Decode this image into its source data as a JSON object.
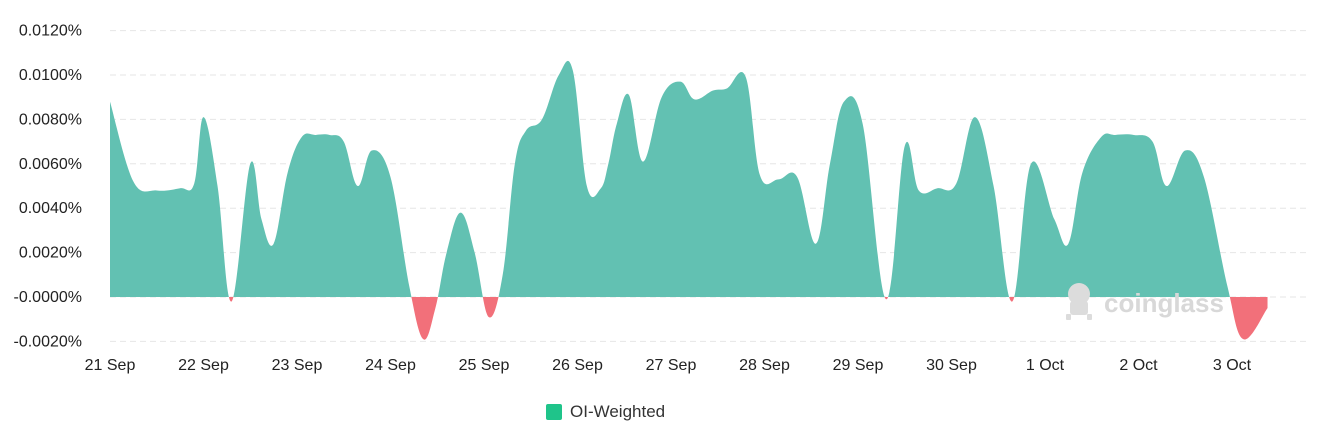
{
  "chart_data": {
    "type": "area",
    "categories": [
      "21 Sep",
      "22 Sep",
      "23 Sep",
      "24 Sep",
      "25 Sep",
      "26 Sep",
      "27 Sep",
      "28 Sep",
      "29 Sep",
      "30 Sep",
      "1 Oct",
      "2 Oct",
      "3 Oct"
    ],
    "y_ticks": [
      "0.0120%",
      "0.0100%",
      "0.0080%",
      "0.0060%",
      "0.0040%",
      "0.0020%",
      "-0.0000%",
      "-0.0020%"
    ],
    "ylim": [
      -0.002,
      0.012
    ],
    "grid": true,
    "legend": {
      "position": "bottom-center",
      "entries": [
        {
          "label": "OI-Weighted",
          "color": "#1fc48a"
        }
      ]
    },
    "positive_color": "#62c1b2",
    "negative_color": "#f2707a",
    "series": [
      {
        "name": "OI-Weighted",
        "x": [
          0,
          0.25,
          0.5,
          0.75,
          0.9,
          1.0,
          1.15,
          1.3,
          1.5,
          1.62,
          1.75,
          1.9,
          2.05,
          2.2,
          2.35,
          2.5,
          2.65,
          2.8,
          3.0,
          3.2,
          3.35,
          3.48,
          3.6,
          3.75,
          3.9,
          4.05,
          4.2,
          4.33,
          4.45,
          4.62,
          4.8,
          4.95,
          5.1,
          5.25,
          5.33,
          5.42,
          5.55,
          5.7,
          5.9,
          6.1,
          6.25,
          6.45,
          6.6,
          6.8,
          6.95,
          7.15,
          7.35,
          7.55,
          7.7,
          7.85,
          8.05,
          8.3,
          8.5,
          8.65,
          8.85,
          9.05,
          9.25,
          9.45,
          9.65,
          9.85,
          10.1,
          10.25,
          10.4,
          10.6,
          10.75,
          10.95,
          11.15,
          11.3,
          11.5,
          11.7,
          11.95,
          12.12,
          12.38
        ],
        "values": [
          0.0088,
          0.0052,
          0.0048,
          0.0049,
          0.0051,
          0.0081,
          0.005,
          -0.0002,
          0.006,
          0.0035,
          0.0024,
          0.0056,
          0.0072,
          0.0073,
          0.0073,
          0.007,
          0.005,
          0.0066,
          0.0054,
          0.0005,
          -0.0019,
          -0.0005,
          0.002,
          0.0038,
          0.002,
          -0.0009,
          0.001,
          0.006,
          0.0075,
          0.008,
          0.01,
          0.0102,
          0.005,
          0.0049,
          0.006,
          0.0078,
          0.0091,
          0.0061,
          0.009,
          0.0097,
          0.0089,
          0.0093,
          0.0094,
          0.0099,
          0.0055,
          0.0053,
          0.0054,
          0.0024,
          0.006,
          0.0088,
          0.0078,
          -0.0001,
          0.0068,
          0.0048,
          0.0049,
          0.0051,
          0.0081,
          0.005,
          -0.0002,
          0.006,
          0.0035,
          0.0024,
          0.0056,
          0.0072,
          0.0073,
          0.0073,
          0.007,
          0.005,
          0.0066,
          0.0054,
          0.0005,
          -0.0019,
          -0.0005
        ]
      }
    ]
  },
  "watermark": {
    "text": "coinglass",
    "icon": "coinglass-logo-icon"
  }
}
